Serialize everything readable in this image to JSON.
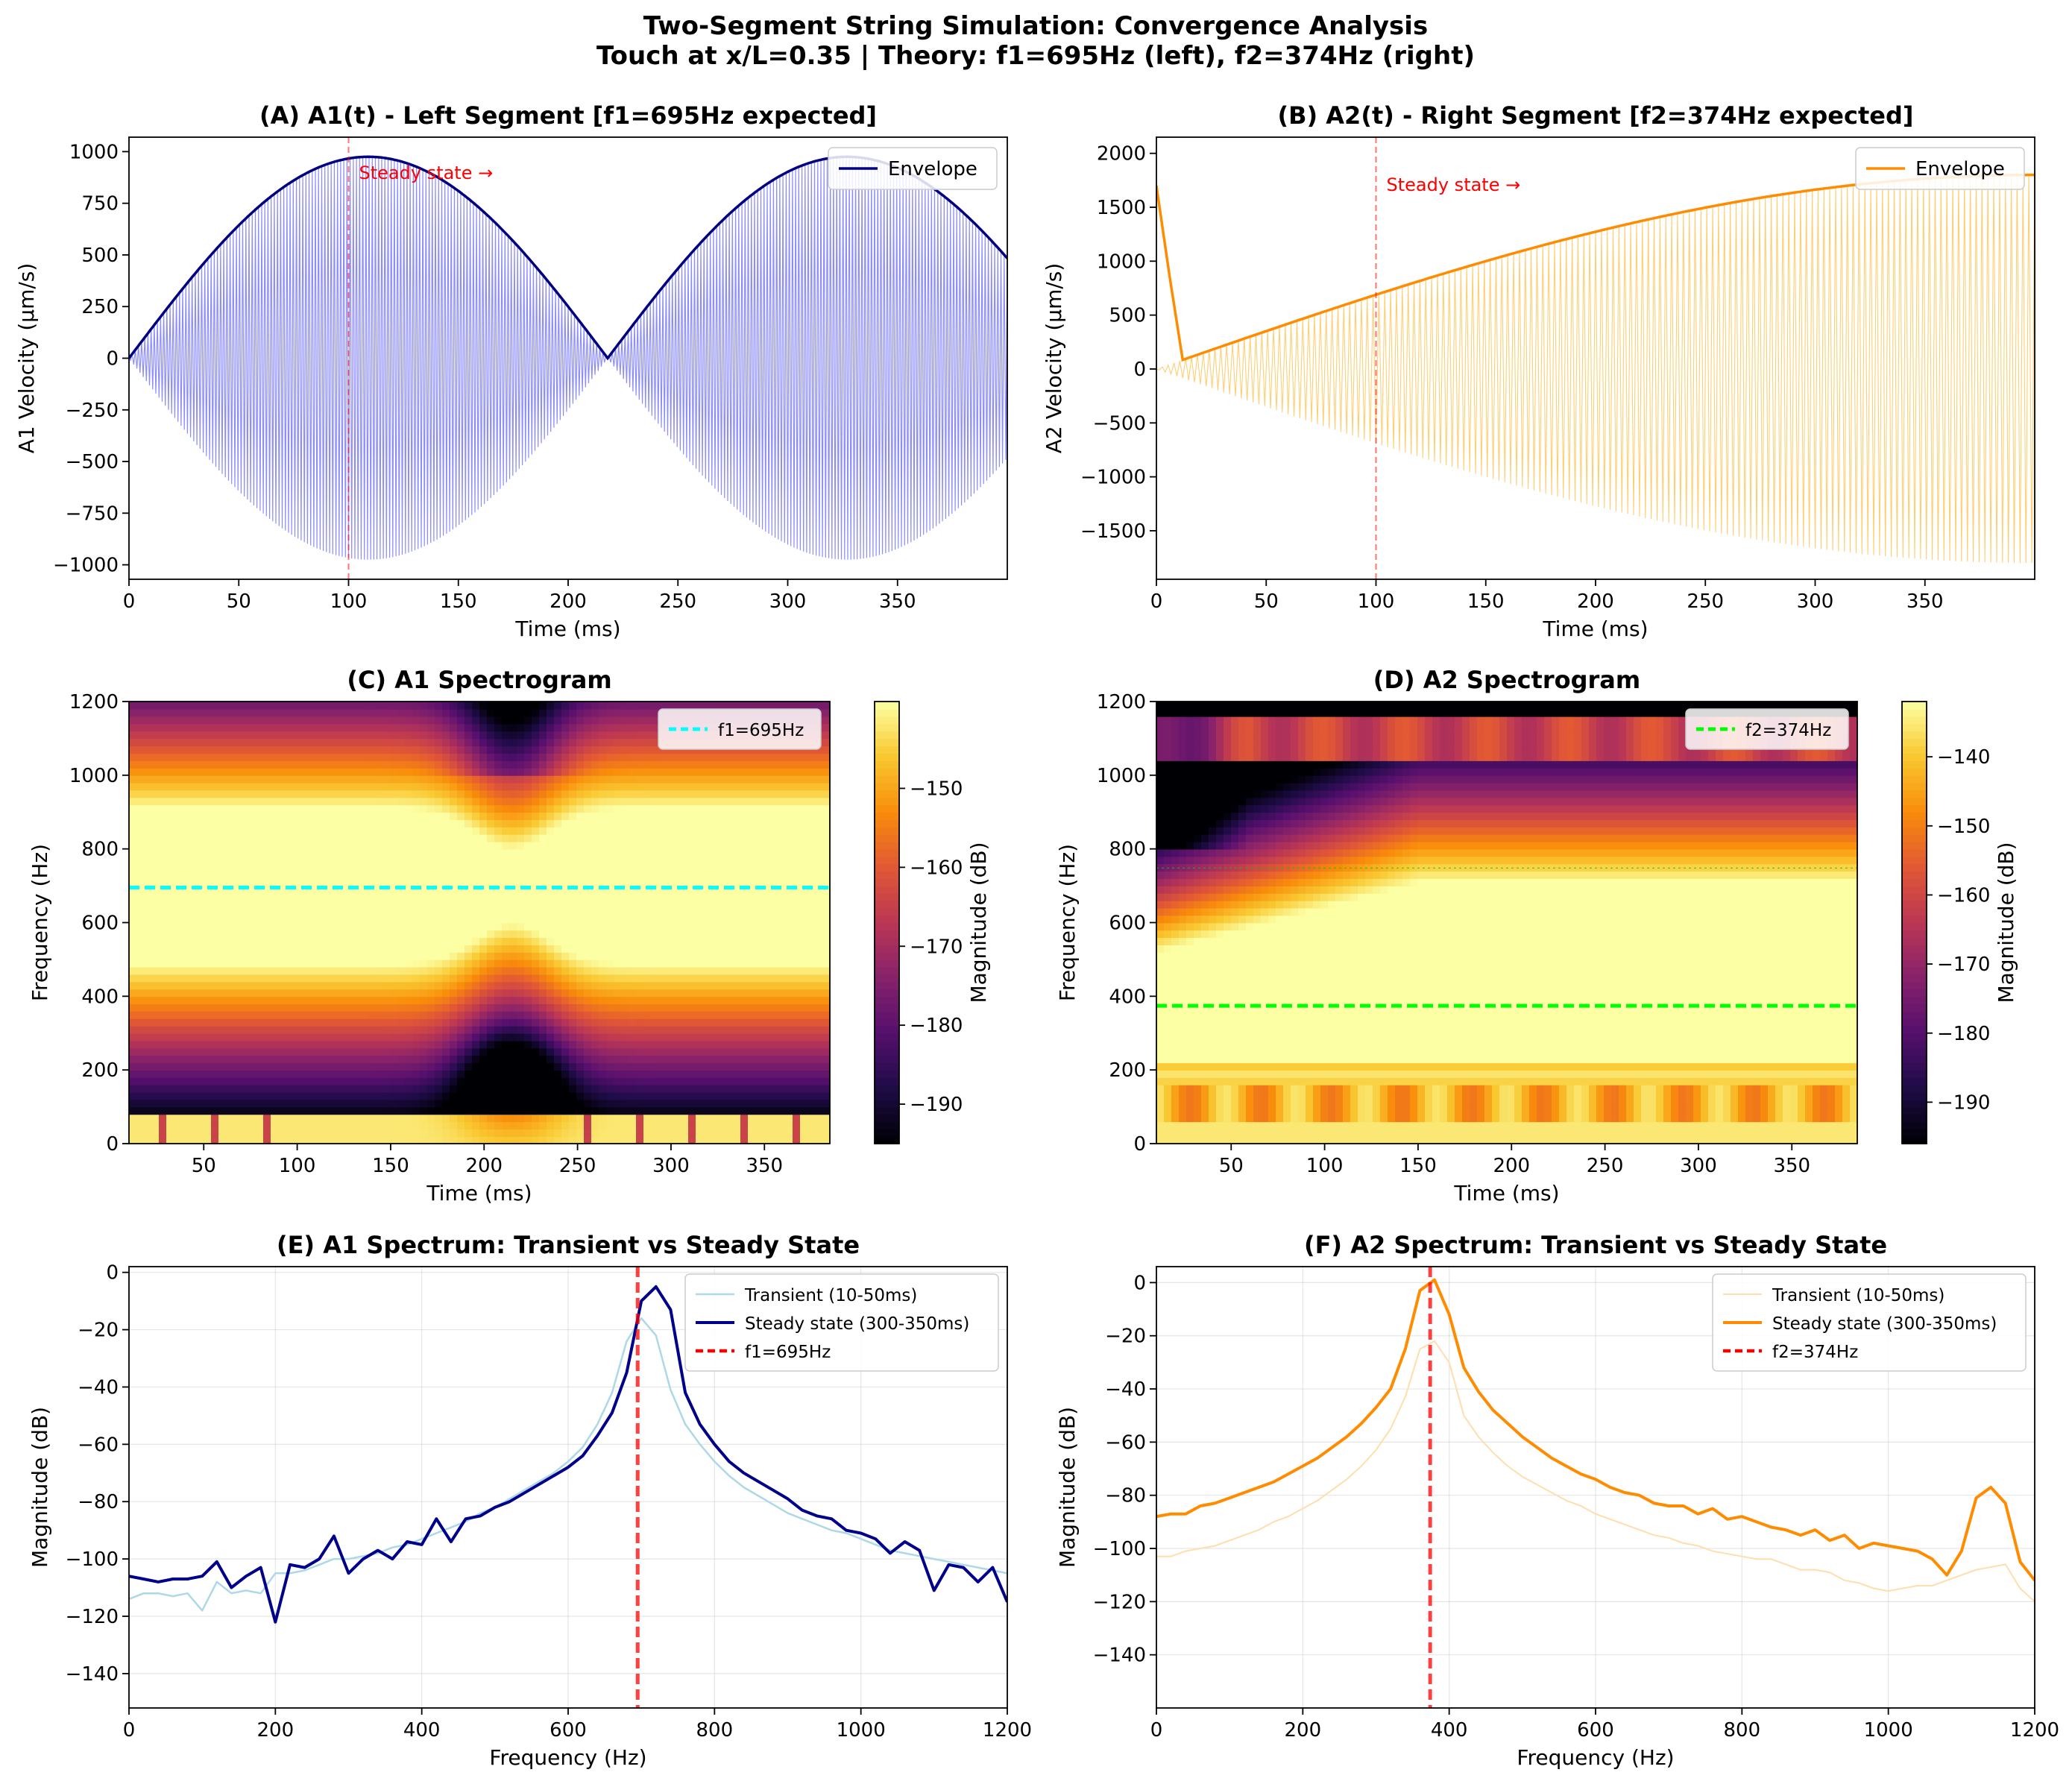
{
  "figure": {
    "title_line1": "Two-Segment String Simulation: Convergence Analysis",
    "title_line2": "Touch at x/L=0.35 | Theory: f1=695Hz (left), f2=374Hz (right)"
  },
  "chart_data": [
    {
      "id": "A",
      "type": "line",
      "title": "(A) A1(t) - Left Segment [f1=695Hz expected]",
      "xlabel": "Time (ms)",
      "ylabel": "A1 Velocity (µm/s)",
      "xlim": [
        0,
        400
      ],
      "ylim": [
        -1070,
        1070
      ],
      "xticks": [
        0,
        50,
        100,
        150,
        200,
        250,
        300,
        350
      ],
      "yticks": [
        -1000,
        -750,
        -500,
        -250,
        0,
        250,
        500,
        750,
        1000
      ],
      "signal": {
        "carrier_hz": 695,
        "beat_period_ms": 218,
        "peak": 975,
        "color": "#0000ff"
      },
      "series": [
        {
          "name": "Envelope",
          "color": "#000080"
        }
      ],
      "marker": {
        "x": 100,
        "text": "Steady state →"
      },
      "legend": "upper-right",
      "grid": false
    },
    {
      "id": "B",
      "type": "line",
      "title": "(B) A2(t) - Right Segment [f2=374Hz expected]",
      "xlabel": "Time (ms)",
      "ylabel": "A2 Velocity (µm/s)",
      "xlim": [
        0,
        400
      ],
      "ylim": [
        -1950,
        2150
      ],
      "xticks": [
        0,
        50,
        100,
        150,
        200,
        250,
        300,
        350
      ],
      "yticks": [
        -1500,
        -1000,
        -500,
        0,
        500,
        1000,
        1500,
        2000
      ],
      "signal": {
        "carrier_hz": 374,
        "peak": 1800,
        "color": "#ffa500"
      },
      "series": [
        {
          "name": "Envelope",
          "color": "#ff8c00"
        }
      ],
      "marker": {
        "x": 100,
        "text": "Steady state →"
      },
      "legend": "upper-right",
      "grid": false
    },
    {
      "id": "C",
      "type": "heatmap",
      "title": "(C) A1 Spectrogram",
      "xlabel": "Time (ms)",
      "ylabel": "Frequency (Hz)",
      "xlim": [
        10,
        385
      ],
      "ylim": [
        0,
        1200
      ],
      "xticks": [
        50,
        100,
        150,
        200,
        250,
        300,
        350
      ],
      "yticks": [
        0,
        200,
        400,
        600,
        800,
        1000,
        1200
      ],
      "colorbar": {
        "label": "Magnitude (dB)",
        "range": [
          -195,
          -139
        ],
        "ticks": [
          -190,
          -180,
          -170,
          -160,
          -150
        ]
      },
      "reference_line": {
        "value": 695,
        "label": "f1=695Hz",
        "color": "#00ffff"
      },
      "legend": "upper-right"
    },
    {
      "id": "D",
      "type": "heatmap",
      "title": "(D) A2 Spectrogram",
      "xlabel": "Time (ms)",
      "ylabel": "Frequency (Hz)",
      "xlim": [
        10,
        385
      ],
      "ylim": [
        0,
        1200
      ],
      "xticks": [
        50,
        100,
        150,
        200,
        250,
        300,
        350
      ],
      "yticks": [
        0,
        200,
        400,
        600,
        800,
        1000,
        1200
      ],
      "colorbar": {
        "label": "Magnitude (dB)",
        "range": [
          -196,
          -132
        ],
        "ticks": [
          -190,
          -180,
          -170,
          -160,
          -150,
          -140
        ]
      },
      "reference_line": {
        "value": 374,
        "label": "f2=374Hz",
        "color": "#00ff00"
      },
      "legend": "upper-right"
    },
    {
      "id": "E",
      "type": "line",
      "title": "(E) A1 Spectrum: Transient vs Steady State",
      "xlabel": "Frequency (Hz)",
      "ylabel": "Magnitude (dB)",
      "xlim": [
        0,
        1200
      ],
      "ylim": [
        -152,
        2
      ],
      "xticks": [
        0,
        200,
        400,
        600,
        800,
        1000,
        1200
      ],
      "yticks": [
        -140,
        -120,
        -100,
        -80,
        -60,
        -40,
        -20,
        0
      ],
      "grid": true,
      "legend": "upper-right",
      "x": [
        0,
        20,
        40,
        60,
        80,
        100,
        120,
        140,
        160,
        180,
        200,
        220,
        240,
        260,
        280,
        300,
        320,
        340,
        360,
        380,
        400,
        420,
        440,
        460,
        480,
        500,
        520,
        540,
        560,
        580,
        600,
        620,
        640,
        660,
        680,
        700,
        720,
        740,
        760,
        780,
        800,
        820,
        840,
        860,
        880,
        900,
        920,
        940,
        960,
        980,
        1000,
        1020,
        1040,
        1060,
        1080,
        1100,
        1120,
        1140,
        1160,
        1180,
        1200
      ],
      "series": [
        {
          "name": "Transient (10-50ms)",
          "color": "#add8e6",
          "width": 2.5,
          "values": [
            -114,
            -112,
            -112,
            -113,
            -112,
            -118,
            -108,
            -112,
            -111,
            -112,
            -105,
            -105,
            -104,
            -102,
            -100,
            -100,
            -99,
            -98,
            -96,
            -95,
            -93,
            -91,
            -89,
            -87,
            -84,
            -82,
            -79,
            -76,
            -73,
            -70,
            -66,
            -61,
            -53,
            -42,
            -24,
            -16,
            -22,
            -41,
            -53,
            -60,
            -66,
            -71,
            -75,
            -78,
            -81,
            -84,
            -86,
            -88,
            -90,
            -91,
            -93,
            -95,
            -97,
            -98,
            -99,
            -100,
            -101,
            -102,
            -103,
            -104,
            -105
          ]
        },
        {
          "name": "Steady state (300-350ms)",
          "color": "#00008b",
          "width": 4,
          "values": [
            -106,
            -107,
            -108,
            -107,
            -107,
            -106,
            -101,
            -110,
            -106,
            -103,
            -122,
            -102,
            -103,
            -100,
            -92,
            -105,
            -100,
            -97,
            -100,
            -94,
            -95,
            -86,
            -94,
            -86,
            -85,
            -82,
            -80,
            -77,
            -74,
            -71,
            -68,
            -64,
            -57,
            -49,
            -35,
            -10,
            -5,
            -13,
            -42,
            -53,
            -60,
            -66,
            -70,
            -73,
            -76,
            -79,
            -83,
            -85,
            -86,
            -90,
            -91,
            -93,
            -98,
            -94,
            -97,
            -111,
            -102,
            -103,
            -108,
            -103,
            -115
          ]
        },
        {
          "name": "f1=695Hz",
          "color": "#ff0000",
          "dash": true,
          "xvalue": 695
        }
      ]
    },
    {
      "id": "F",
      "type": "line",
      "title": "(F) A2 Spectrum: Transient vs Steady State",
      "xlabel": "Frequency (Hz)",
      "ylabel": "Magnitude (dB)",
      "xlim": [
        0,
        1200
      ],
      "ylim": [
        -160,
        6
      ],
      "xticks": [
        0,
        200,
        400,
        600,
        800,
        1000,
        1200
      ],
      "yticks": [
        -140,
        -120,
        -100,
        -80,
        -60,
        -40,
        -20,
        0
      ],
      "grid": true,
      "legend": "upper-right",
      "x": [
        0,
        20,
        40,
        60,
        80,
        100,
        120,
        140,
        160,
        180,
        200,
        220,
        240,
        260,
        280,
        300,
        320,
        340,
        360,
        380,
        400,
        420,
        440,
        460,
        480,
        500,
        520,
        540,
        560,
        580,
        600,
        620,
        640,
        660,
        680,
        700,
        720,
        740,
        760,
        780,
        800,
        820,
        840,
        860,
        880,
        900,
        920,
        940,
        960,
        980,
        1000,
        1020,
        1040,
        1060,
        1080,
        1100,
        1120,
        1140,
        1160,
        1180,
        1200
      ],
      "series": [
        {
          "name": "Transient (10-50ms)",
          "color": "#ffdead",
          "width": 2,
          "values": [
            -103,
            -103,
            -101,
            -100,
            -99,
            -97,
            -95,
            -93,
            -90,
            -88,
            -85,
            -82,
            -78,
            -74,
            -69,
            -63,
            -55,
            -43,
            -25,
            -22,
            -30,
            -50,
            -58,
            -64,
            -69,
            -73,
            -76,
            -79,
            -82,
            -84,
            -87,
            -89,
            -91,
            -93,
            -95,
            -96,
            -98,
            -99,
            -101,
            -102,
            -103,
            -104,
            -104,
            -106,
            -108,
            -108,
            -109,
            -112,
            -113,
            -115,
            -116,
            -115,
            -114,
            -114,
            -112,
            -110,
            -108,
            -107,
            -106,
            -115,
            -120
          ]
        },
        {
          "name": "Steady state (300-350ms)",
          "color": "#ff8c00",
          "width": 4,
          "values": [
            -88,
            -87,
            -87,
            -84,
            -83,
            -81,
            -79,
            -77,
            -75,
            -72,
            -69,
            -66,
            -62,
            -58,
            -53,
            -47,
            -40,
            -25,
            -3,
            1,
            -12,
            -32,
            -41,
            -48,
            -53,
            -58,
            -62,
            -66,
            -69,
            -72,
            -74,
            -77,
            -79,
            -80,
            -83,
            -84,
            -84,
            -87,
            -85,
            -89,
            -88,
            -90,
            -92,
            -93,
            -95,
            -93,
            -97,
            -95,
            -100,
            -98,
            -99,
            -100,
            -101,
            -104,
            -110,
            -101,
            -81,
            -77,
            -83,
            -105,
            -112
          ]
        },
        {
          "name": "f2=374Hz",
          "color": "#ff0000",
          "dash": true,
          "xvalue": 374
        }
      ]
    }
  ]
}
